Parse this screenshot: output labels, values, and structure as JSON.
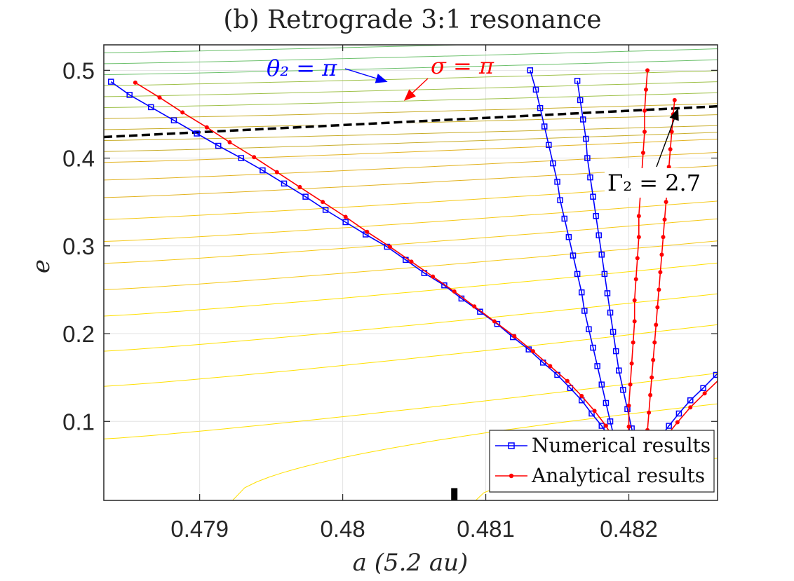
{
  "chart_data": {
    "type": "line",
    "title": "(b) Retrograde 3:1 resonance",
    "xlabel": "a (5.2 au)",
    "ylabel": "e",
    "xlim": [
      0.47833,
      0.48262
    ],
    "ylim": [
      0.01,
      0.529
    ],
    "x_ticks": [
      0.479,
      0.48,
      0.481,
      0.482
    ],
    "x_tick_labels": [
      "0.479",
      "0.48",
      "0.481",
      "0.482"
    ],
    "y_ticks": [
      0.1,
      0.2,
      0.3,
      0.4,
      0.5
    ],
    "y_tick_labels": [
      "0.1",
      "0.2",
      "0.3",
      "0.4",
      "0.5"
    ],
    "grid": true,
    "legend_position": "bottom-right",
    "series": [
      {
        "name": "Numerical results",
        "color": "#0000ff",
        "marker": "square",
        "left_branch": [
          [
            0.47838,
            0.487
          ],
          [
            0.47851,
            0.472
          ],
          [
            0.47866,
            0.458
          ],
          [
            0.47882,
            0.443
          ],
          [
            0.47898,
            0.428
          ],
          [
            0.47913,
            0.414
          ],
          [
            0.47929,
            0.4
          ],
          [
            0.47944,
            0.386
          ],
          [
            0.47959,
            0.371
          ],
          [
            0.47974,
            0.356
          ],
          [
            0.47988,
            0.341
          ],
          [
            0.48002,
            0.327
          ],
          [
            0.48016,
            0.313
          ],
          [
            0.48031,
            0.299
          ],
          [
            0.48044,
            0.284
          ],
          [
            0.48057,
            0.269
          ],
          [
            0.48071,
            0.255
          ],
          [
            0.48083,
            0.24
          ],
          [
            0.48096,
            0.225
          ],
          [
            0.48108,
            0.211
          ],
          [
            0.48119,
            0.196
          ],
          [
            0.4813,
            0.182
          ],
          [
            0.4814,
            0.167
          ],
          [
            0.4815,
            0.153
          ],
          [
            0.48159,
            0.138
          ],
          [
            0.48167,
            0.124
          ],
          [
            0.48174,
            0.109
          ],
          [
            0.48181,
            0.095
          ],
          [
            0.48187,
            0.08
          ],
          [
            0.48193,
            0.066
          ],
          [
            0.48199,
            0.052
          ]
        ],
        "center_left": [
          [
            0.48193,
            0.066
          ],
          [
            0.4819,
            0.08
          ],
          [
            0.48187,
            0.1
          ],
          [
            0.48184,
            0.121
          ],
          [
            0.48181,
            0.142
          ],
          [
            0.48178,
            0.163
          ],
          [
            0.48175,
            0.184
          ],
          [
            0.48172,
            0.205
          ],
          [
            0.48169,
            0.226
          ],
          [
            0.48167,
            0.247
          ],
          [
            0.48164,
            0.268
          ],
          [
            0.48161,
            0.289
          ],
          [
            0.48158,
            0.31
          ],
          [
            0.48155,
            0.331
          ],
          [
            0.48152,
            0.352
          ],
          [
            0.4815,
            0.373
          ],
          [
            0.48147,
            0.394
          ],
          [
            0.48144,
            0.415
          ],
          [
            0.48141,
            0.436
          ],
          [
            0.48138,
            0.457
          ],
          [
            0.48135,
            0.478
          ],
          [
            0.48131,
            0.5
          ]
        ],
        "center_right": [
          [
            0.48209,
            0.052
          ],
          [
            0.48205,
            0.07
          ],
          [
            0.48202,
            0.092
          ],
          [
            0.48199,
            0.114
          ],
          [
            0.48196,
            0.136
          ],
          [
            0.48193,
            0.158
          ],
          [
            0.48191,
            0.18
          ],
          [
            0.48189,
            0.202
          ],
          [
            0.48187,
            0.224
          ],
          [
            0.48185,
            0.246
          ],
          [
            0.48183,
            0.268
          ],
          [
            0.48181,
            0.29
          ],
          [
            0.48179,
            0.312
          ],
          [
            0.48177,
            0.334
          ],
          [
            0.48175,
            0.356
          ],
          [
            0.48173,
            0.378
          ],
          [
            0.48171,
            0.4
          ],
          [
            0.4817,
            0.422
          ],
          [
            0.48168,
            0.444
          ],
          [
            0.48166,
            0.466
          ],
          [
            0.48164,
            0.488
          ]
        ],
        "right_branch": [
          [
            0.48209,
            0.052
          ],
          [
            0.48215,
            0.066
          ],
          [
            0.48221,
            0.08
          ],
          [
            0.48228,
            0.095
          ],
          [
            0.48235,
            0.109
          ],
          [
            0.48243,
            0.124
          ],
          [
            0.48252,
            0.138
          ],
          [
            0.48261,
            0.153
          ],
          [
            0.48271,
            0.167
          ],
          [
            0.48281,
            0.182
          ],
          [
            0.48292,
            0.196
          ],
          [
            0.48303,
            0.211
          ],
          [
            0.48315,
            0.225
          ],
          [
            0.48328,
            0.24
          ],
          [
            0.48341,
            0.255
          ],
          [
            0.48354,
            0.269
          ],
          [
            0.48367,
            0.284
          ],
          [
            0.48381,
            0.299
          ],
          [
            0.48395,
            0.313
          ],
          [
            0.48409,
            0.327
          ],
          [
            0.48423,
            0.341
          ],
          [
            0.48438,
            0.356
          ],
          [
            0.48452,
            0.371
          ],
          [
            0.48467,
            0.386
          ],
          [
            0.48482,
            0.4
          ],
          [
            0.48497,
            0.414
          ],
          [
            0.48512,
            0.428
          ],
          [
            0.48527,
            0.443
          ],
          [
            0.48543,
            0.458
          ],
          [
            0.48558,
            0.472
          ],
          [
            0.48573,
            0.487
          ],
          [
            0.48588,
            0.5
          ],
          [
            0.48603,
            0.514
          ]
        ]
      },
      {
        "name": "Analytical results",
        "color": "#ff0000",
        "marker": "dot",
        "left_branch": [
          [
            0.47855,
            0.486
          ],
          [
            0.47872,
            0.469
          ],
          [
            0.47888,
            0.452
          ],
          [
            0.47905,
            0.435
          ],
          [
            0.47921,
            0.418
          ],
          [
            0.47938,
            0.401
          ],
          [
            0.47954,
            0.384
          ],
          [
            0.4797,
            0.367
          ],
          [
            0.47986,
            0.35
          ],
          [
            0.48002,
            0.333
          ],
          [
            0.48017,
            0.316
          ],
          [
            0.48033,
            0.299
          ],
          [
            0.48048,
            0.282
          ],
          [
            0.48063,
            0.265
          ],
          [
            0.48078,
            0.248
          ],
          [
            0.48092,
            0.231
          ],
          [
            0.48106,
            0.214
          ],
          [
            0.4812,
            0.197
          ],
          [
            0.48133,
            0.18
          ],
          [
            0.48145,
            0.163
          ],
          [
            0.48157,
            0.146
          ],
          [
            0.48167,
            0.129
          ],
          [
            0.48176,
            0.112
          ],
          [
            0.48184,
            0.095
          ],
          [
            0.4819,
            0.078
          ],
          [
            0.48195,
            0.061
          ],
          [
            0.48198,
            0.047
          ]
        ],
        "center_left": [
          [
            0.48198,
            0.047
          ],
          [
            0.48199,
            0.07
          ],
          [
            0.482,
            0.094
          ],
          [
            0.482,
            0.118
          ],
          [
            0.48201,
            0.142
          ],
          [
            0.48202,
            0.166
          ],
          [
            0.48203,
            0.19
          ],
          [
            0.48204,
            0.214
          ],
          [
            0.48204,
            0.238
          ],
          [
            0.48205,
            0.262
          ],
          [
            0.48206,
            0.286
          ],
          [
            0.48207,
            0.31
          ],
          [
            0.48207,
            0.334
          ],
          [
            0.48208,
            0.358
          ],
          [
            0.48209,
            0.382
          ],
          [
            0.4821,
            0.406
          ],
          [
            0.48211,
            0.43
          ],
          [
            0.48211,
            0.454
          ],
          [
            0.48212,
            0.478
          ],
          [
            0.48213,
            0.5
          ]
        ],
        "center_right": [
          [
            0.48211,
            0.05
          ],
          [
            0.48212,
            0.07
          ],
          [
            0.48213,
            0.09
          ],
          [
            0.48214,
            0.11
          ],
          [
            0.48215,
            0.13
          ],
          [
            0.48216,
            0.15
          ],
          [
            0.48217,
            0.17
          ],
          [
            0.48218,
            0.19
          ],
          [
            0.48219,
            0.21
          ],
          [
            0.4822,
            0.23
          ],
          [
            0.48221,
            0.25
          ],
          [
            0.48222,
            0.27
          ],
          [
            0.48223,
            0.29
          ],
          [
            0.48224,
            0.31
          ],
          [
            0.48225,
            0.33
          ],
          [
            0.48226,
            0.35
          ],
          [
            0.48227,
            0.37
          ],
          [
            0.48228,
            0.39
          ],
          [
            0.48229,
            0.41
          ],
          [
            0.4823,
            0.43
          ],
          [
            0.48231,
            0.45
          ],
          [
            0.48232,
            0.466
          ]
        ],
        "right_branch": [
          [
            0.48211,
            0.05
          ],
          [
            0.48218,
            0.066
          ],
          [
            0.48226,
            0.083
          ],
          [
            0.48234,
            0.099
          ],
          [
            0.48243,
            0.116
          ],
          [
            0.48253,
            0.132
          ],
          [
            0.48264,
            0.149
          ],
          [
            0.48276,
            0.165
          ],
          [
            0.48288,
            0.182
          ],
          [
            0.48301,
            0.198
          ],
          [
            0.48315,
            0.215
          ],
          [
            0.4833,
            0.231
          ],
          [
            0.48345,
            0.248
          ],
          [
            0.48361,
            0.264
          ],
          [
            0.48377,
            0.281
          ],
          [
            0.48393,
            0.297
          ],
          [
            0.4841,
            0.314
          ],
          [
            0.48427,
            0.33
          ],
          [
            0.48444,
            0.347
          ],
          [
            0.48462,
            0.363
          ],
          [
            0.48479,
            0.38
          ],
          [
            0.48497,
            0.396
          ],
          [
            0.48515,
            0.413
          ],
          [
            0.48533,
            0.429
          ],
          [
            0.48551,
            0.446
          ],
          [
            0.48569,
            0.462
          ],
          [
            0.48588,
            0.479
          ],
          [
            0.48606,
            0.495
          ],
          [
            0.48624,
            0.512
          ]
        ]
      }
    ],
    "contours": {
      "count": 36,
      "e_start_at_left": [
        0.08,
        0.14,
        0.18,
        0.22,
        0.25,
        0.28,
        0.305,
        0.33,
        0.355,
        0.375,
        0.395
      ],
      "colors_low_to_high": [
        "#ffe000",
        "#f5c816",
        "#e2b21f",
        "#c8ad2a",
        "#9fc14a",
        "#6cc06c",
        "#3fb58c",
        "#28a8a8",
        "#2b92c6",
        "#2f7fd6"
      ]
    },
    "gamma_line": {
      "label": "Γ₂ = 2.7",
      "e_left": 0.424,
      "e_right": 0.459,
      "color": "#000000",
      "style": "dashed"
    },
    "black_tick": {
      "a": 0.48078,
      "e_min": 0.01,
      "e_max": 0.024
    },
    "annotations": [
      {
        "name": "theta-annotation",
        "label": "θ₂ = π",
        "color": "#0000ff",
        "arrow_to": [
          0.48128,
          0.486
        ]
      },
      {
        "name": "sigma-annotation",
        "label": "σ = π",
        "color": "#ff0000",
        "arrow_to": [
          0.48224,
          0.468
        ]
      },
      {
        "name": "gamma-annotation",
        "label": "Γ₂ = 2.7",
        "color": "#000000",
        "arrow_to": [
          0.48176,
          0.458
        ]
      }
    ]
  }
}
